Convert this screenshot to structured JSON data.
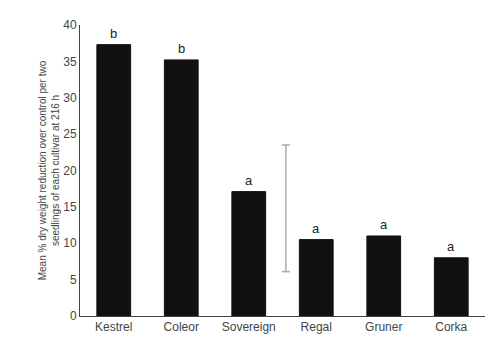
{
  "chart_data": {
    "type": "bar",
    "categories": [
      "Kestrel",
      "Coleor",
      "Sovereign",
      "Regal",
      "Gruner",
      "Corka"
    ],
    "values": [
      37.3,
      35.2,
      17.1,
      10.5,
      11.0,
      8.0
    ],
    "color": "#111111",
    "letters": [
      "b",
      "b",
      "a",
      "a",
      "a",
      "a"
    ],
    "ylabel": "Mean % dry weight reduction over control per two\nseedlings of each cultivar at 216 h",
    "ylim": [
      0,
      40
    ],
    "yticks": [
      0,
      5,
      10,
      15,
      20,
      25,
      30,
      35,
      40
    ],
    "lsd_bar": {
      "category": "Sovereign",
      "bottom": 6.1,
      "top": 23.5,
      "color": "#aaaaaa"
    },
    "grid": false
  }
}
